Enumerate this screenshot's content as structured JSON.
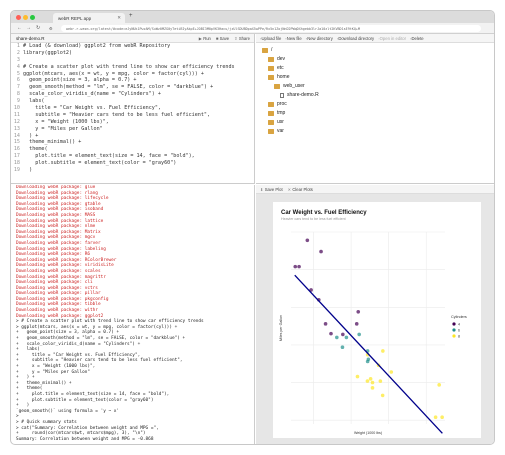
{
  "browser": {
    "tab_title": "webR REPL app",
    "url": "webr.r-wasm.org/latest/#code=eJyNUk1PwzAM/SuWz0MZG0yTetiBIyAkpE+JOBI3M0pVK3Hacu/jzUlSDUBDpaX5wPPe/Rx5n1ZojNnD2PWqDXhgebb3lrJa10zlt2KVBD1sE9tKQ+M"
  },
  "editor": {
    "file_name": "share-demo.R",
    "actions": [
      "Run",
      "Save",
      "Share"
    ],
    "lines": [
      "# Load (& download) ggplot2 from webR Repository",
      "library(ggplot2)",
      "",
      "# Create a scatter plot with trend line to show car efficiency trends",
      "ggplot(mtcars, aes(x = wt, y = mpg, color = factor(cyl))) +",
      "  geom_point(size = 3, alpha = 0.7) +",
      "  geom_smooth(method = \"lm\", se = FALSE, color = \"darkblue\") +",
      "  scale_color_viridis_d(name = \"Cylinders\") +",
      "  labs(",
      "    title = \"Car Weight vs. Fuel Efficiency\",",
      "    subtitle = \"Heavier cars tend to be less fuel efficient\",",
      "    x = \"Weight (1000 lbs)\",",
      "    y = \"Miles per Gallon\"",
      "  ) +",
      "  theme_minimal() +",
      "  theme(",
      "    plot.title = element_text(size = 14, face = \"bold\"),",
      "    plot.subtitle = element_text(color = \"gray60\")",
      "  )"
    ]
  },
  "files": {
    "toolbar": [
      "Upload file",
      "New file",
      "New directory",
      "Download directory",
      "Open in editor",
      "Delete"
    ],
    "disabled_action": "Open in editor",
    "tree": [
      {
        "name": "/",
        "type": "folder",
        "depth": 0
      },
      {
        "name": "dev",
        "type": "folder",
        "depth": 1
      },
      {
        "name": "etc",
        "type": "folder",
        "depth": 1
      },
      {
        "name": "home",
        "type": "folder",
        "depth": 1
      },
      {
        "name": "web_user",
        "type": "folder",
        "depth": 2
      },
      {
        "name": "share-demo.R",
        "type": "file",
        "depth": 3
      },
      {
        "name": "proc",
        "type": "folder",
        "depth": 1
      },
      {
        "name": "tmp",
        "type": "folder",
        "depth": 1
      },
      {
        "name": "usr",
        "type": "folder",
        "depth": 1
      },
      {
        "name": "var",
        "type": "folder",
        "depth": 1
      }
    ]
  },
  "console": {
    "downloads": [
      "glue",
      "rlang",
      "lifecycle",
      "gtable",
      "isoband",
      "MASS",
      "lattice",
      "nlme",
      "Matrix",
      "mgcv",
      "farver",
      "labeling",
      "R6",
      "RColorBrewer",
      "viridisLite",
      "scales",
      "magrittr",
      "cli",
      "vctrs",
      "pillar",
      "pkgconfig",
      "tibble",
      "withr",
      "ggplot2"
    ],
    "download_prefix": "Downloading webR package: ",
    "echo": [
      "> # Create a scatter plot with trend line to show car efficiency trends",
      "> ggplot(mtcars, aes(x = wt, y = mpg, color = factor(cyl))) +",
      "+   geom_point(size = 3, alpha = 0.7) +",
      "+   geom_smooth(method = \"lm\", se = FALSE, color = \"darkblue\") +",
      "+   scale_color_viridis_d(name = \"Cylinders\") +",
      "+   labs(",
      "+     title = \"Car Weight vs. Fuel Efficiency\",",
      "+     subtitle = \"Heavier cars tend to be less fuel efficient\",",
      "+     x = \"Weight (1000 lbs)\",",
      "+     y = \"Miles per Gallon\"",
      "+   ) +",
      "+   theme_minimal() +",
      "+   theme(",
      "+     plot.title = element_text(size = 14, face = \"bold\"),",
      "+     plot.subtitle = element_text(color = \"gray60\")",
      "+   )",
      "`geom_smooth()` using formula = 'y ~ x'",
      "> ",
      "> # Quick summary stats",
      "> cat(\"Summary: Correlation between weight and MPG =\",",
      "+     round(cor(mtcars$wt, mtcars$mpg), 3), \"\\n\")",
      "Summary: Correlation between weight and MPG = -0.868"
    ]
  },
  "plot_toolbar": [
    "Save Plot",
    "Clear Plots"
  ],
  "chart_data": {
    "type": "scatter",
    "title": "Car Weight vs. Fuel Efficiency",
    "subtitle": "Heavier cars tend to be less fuel efficient",
    "xlabel": "Weight (1000 lbs)",
    "ylabel": "Miles per Gallon",
    "xlim": [
      1.4,
      5.5
    ],
    "ylim": [
      9.5,
      35
    ],
    "grid": true,
    "legend": {
      "title": "Cylinders",
      "placement": "right",
      "entries": [
        "4",
        "6",
        "8"
      ]
    },
    "colors": {
      "4": "#440154",
      "6": "#21908c",
      "8": "#fde725",
      "trend": "#00008b"
    },
    "trend": {
      "intercept": 37.285,
      "slope": -5.344
    },
    "points": [
      {
        "x": 2.62,
        "y": 21.0,
        "cyl": "6"
      },
      {
        "x": 2.875,
        "y": 21.0,
        "cyl": "6"
      },
      {
        "x": 2.32,
        "y": 22.8,
        "cyl": "4"
      },
      {
        "x": 3.215,
        "y": 21.4,
        "cyl": "6"
      },
      {
        "x": 3.44,
        "y": 18.7,
        "cyl": "8"
      },
      {
        "x": 3.46,
        "y": 18.1,
        "cyl": "6"
      },
      {
        "x": 3.57,
        "y": 14.3,
        "cyl": "8"
      },
      {
        "x": 3.19,
        "y": 24.4,
        "cyl": "4"
      },
      {
        "x": 3.15,
        "y": 22.8,
        "cyl": "4"
      },
      {
        "x": 3.44,
        "y": 19.2,
        "cyl": "6"
      },
      {
        "x": 3.44,
        "y": 17.8,
        "cyl": "6"
      },
      {
        "x": 4.07,
        "y": 16.4,
        "cyl": "8"
      },
      {
        "x": 3.73,
        "y": 17.3,
        "cyl": "8"
      },
      {
        "x": 3.78,
        "y": 15.2,
        "cyl": "8"
      },
      {
        "x": 5.25,
        "y": 10.4,
        "cyl": "8"
      },
      {
        "x": 5.424,
        "y": 10.4,
        "cyl": "8"
      },
      {
        "x": 5.345,
        "y": 14.7,
        "cyl": "8"
      },
      {
        "x": 2.2,
        "y": 32.4,
        "cyl": "4"
      },
      {
        "x": 1.615,
        "y": 30.4,
        "cyl": "4"
      },
      {
        "x": 1.835,
        "y": 33.9,
        "cyl": "4"
      },
      {
        "x": 2.465,
        "y": 21.5,
        "cyl": "4"
      },
      {
        "x": 3.52,
        "y": 15.5,
        "cyl": "8"
      },
      {
        "x": 3.435,
        "y": 15.2,
        "cyl": "8"
      },
      {
        "x": 3.84,
        "y": 13.3,
        "cyl": "8"
      },
      {
        "x": 3.845,
        "y": 19.2,
        "cyl": "8"
      },
      {
        "x": 1.935,
        "y": 27.3,
        "cyl": "4"
      },
      {
        "x": 2.14,
        "y": 26.0,
        "cyl": "4"
      },
      {
        "x": 1.513,
        "y": 30.4,
        "cyl": "4"
      },
      {
        "x": 3.17,
        "y": 15.8,
        "cyl": "8"
      },
      {
        "x": 2.77,
        "y": 19.7,
        "cyl": "6"
      },
      {
        "x": 3.57,
        "y": 15.0,
        "cyl": "8"
      },
      {
        "x": 2.78,
        "y": 21.4,
        "cyl": "4"
      }
    ]
  }
}
